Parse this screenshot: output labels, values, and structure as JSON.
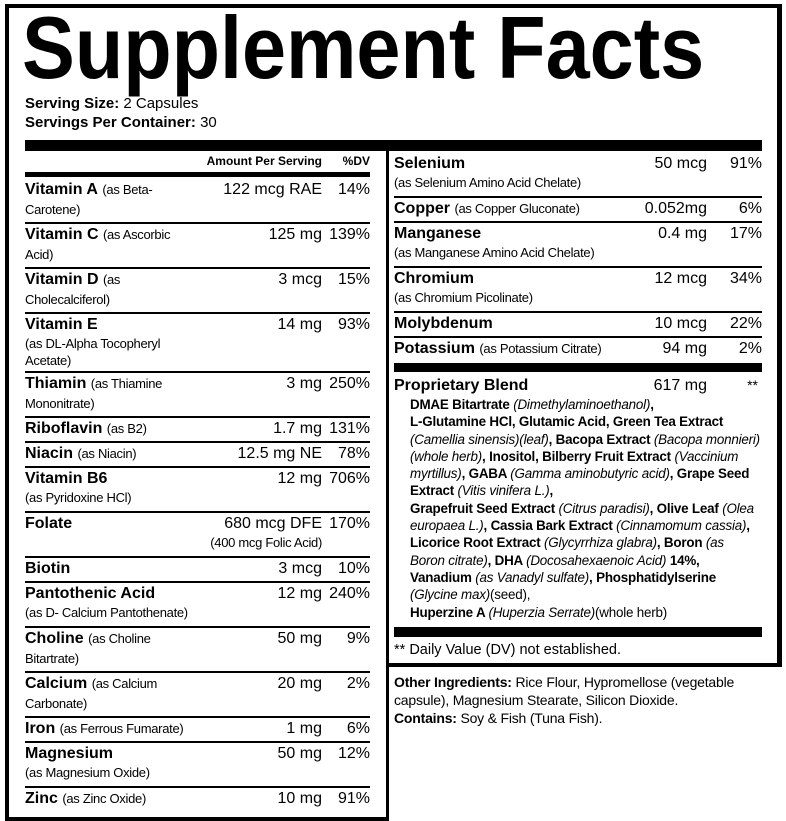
{
  "title": "Supplement Facts",
  "serving": {
    "size_label": "Serving Size:",
    "size_value": "2 Capsules",
    "per_container_label": "Servings Per Container:",
    "per_container_value": "30"
  },
  "header": {
    "amount": "Amount Per Serving",
    "dv": "%DV"
  },
  "left_rows": [
    {
      "name": "Vitamin A",
      "source": "(as Beta-Carotene)",
      "amount": "122 mcg RAE",
      "dv": "14%",
      "double": false
    },
    {
      "name": "Vitamin C",
      "source": "(as Ascorbic Acid)",
      "amount": "125 mg",
      "dv": "139%",
      "double": false
    },
    {
      "name": "Vitamin D",
      "source": "(as Cholecalciferol)",
      "amount": "3 mcg",
      "dv": "15%",
      "double": false
    },
    {
      "name": "Vitamin E",
      "source": "(as DL-Alpha Tocopheryl Acetate)",
      "amount": "14 mg",
      "dv": "93%",
      "double": true
    },
    {
      "name": "Thiamin",
      "source": "(as Thiamine Mononitrate)",
      "amount": "3 mg",
      "dv": "250%",
      "double": false
    },
    {
      "name": "Riboflavin",
      "source": "(as B2)",
      "amount": "1.7 mg",
      "dv": "131%",
      "double": false
    },
    {
      "name": "Niacin",
      "source": "(as Niacin)",
      "amount": "12.5 mg NE",
      "dv": "78%",
      "double": false
    },
    {
      "name": "Vitamin B6",
      "source": "(as Pyridoxine HCl)",
      "amount": "12 mg",
      "dv": "706%",
      "double": true
    },
    {
      "name": "Folate",
      "source": "",
      "amount": "680 mcg DFE",
      "amount_sub": "(400 mcg Folic Acid)",
      "dv": "170%",
      "double": true
    },
    {
      "name": "Biotin",
      "source": "",
      "amount": "3 mcg",
      "dv": "10%",
      "double": false
    },
    {
      "name": "Pantothenic Acid",
      "source": "(as D- Calcium Pantothenate)",
      "amount": "12 mg",
      "dv": "240%",
      "double": true
    },
    {
      "name": "Choline",
      "source": "(as Choline Bitartrate)",
      "amount": "50 mg",
      "dv": "9%",
      "double": false
    },
    {
      "name": "Calcium",
      "source": "(as Calcium Carbonate)",
      "amount": "20 mg",
      "dv": "2%",
      "double": false
    },
    {
      "name": "Iron",
      "source": "(as Ferrous Fumarate)",
      "amount": "1 mg",
      "dv": "6%",
      "double": false
    },
    {
      "name": "Magnesium",
      "source": "(as Magnesium Oxide)",
      "amount": "50 mg",
      "dv": "12%",
      "double": true
    },
    {
      "name": "Zinc",
      "source": "(as Zinc Oxide)",
      "amount": "10 mg",
      "dv": "91%",
      "double": false
    }
  ],
  "right_rows": [
    {
      "name": "Selenium",
      "source": "(as Selenium Amino Acid Chelate)",
      "amount": "50 mcg",
      "dv": "91%",
      "double": true
    },
    {
      "name": "Copper",
      "source": "(as Copper Gluconate)",
      "amount": "0.052mg",
      "dv": "6%",
      "double": false
    },
    {
      "name": "Manganese",
      "source": "(as Manganese Amino Acid Chelate)",
      "amount": "0.4 mg",
      "dv": "17%",
      "double": true
    },
    {
      "name": "Chromium",
      "source": "(as Chromium Picolinate)",
      "amount": "12 mcg",
      "dv": "34%",
      "double": true
    },
    {
      "name": "Molybdenum",
      "source": "",
      "amount": "10 mcg",
      "dv": "22%",
      "double": false
    },
    {
      "name": "Potassium",
      "source": "(as Potassium Citrate)",
      "amount": "94 mg",
      "dv": "2%",
      "double": false
    }
  ],
  "blend": {
    "name": "Proprietary Blend",
    "amount": "617 mg",
    "dv": "**",
    "segments": [
      {
        "t": "DMAE Bitartrate ",
        "s": "b"
      },
      {
        "t": "(Dimethylaminoethanol)",
        "s": "i"
      },
      {
        "t": ",",
        "s": "b"
      },
      {
        "t": "\n",
        "s": "br"
      },
      {
        "t": "L-Glutamine HCl, Glutamic Acid, Green Tea Extract ",
        "s": "b"
      },
      {
        "t": "(Camellia sinensis)(leaf)",
        "s": "i"
      },
      {
        "t": ", Bacopa Extract ",
        "s": "b"
      },
      {
        "t": "(Bacopa monnieri)(whole herb)",
        "s": "i"
      },
      {
        "t": ", Inositol, Bilberry Fruit Extract ",
        "s": "b"
      },
      {
        "t": "(Vaccinium myrtillus)",
        "s": "i"
      },
      {
        "t": ", GABA ",
        "s": "b"
      },
      {
        "t": "(Gamma aminobutyric acid)",
        "s": "i"
      },
      {
        "t": ", Grape Seed Extract ",
        "s": "b"
      },
      {
        "t": "(Vitis vinifera L.)",
        "s": "i"
      },
      {
        "t": ",",
        "s": "b"
      },
      {
        "t": "\n",
        "s": "br"
      },
      {
        "t": "Grapefruit Seed Extract ",
        "s": "b"
      },
      {
        "t": "(Citrus paradisi)",
        "s": "i"
      },
      {
        "t": ", Olive Leaf ",
        "s": "b"
      },
      {
        "t": "(Olea europaea L.)",
        "s": "i"
      },
      {
        "t": ", Cassia Bark Extract ",
        "s": "b"
      },
      {
        "t": "(Cinnamomum cassia)",
        "s": "i"
      },
      {
        "t": ", Licorice Root Extract ",
        "s": "b"
      },
      {
        "t": "(Glycyrrhiza glabra)",
        "s": "i"
      },
      {
        "t": ", Boron ",
        "s": "b"
      },
      {
        "t": "(as Boron citrate)",
        "s": "i"
      },
      {
        "t": ", DHA ",
        "s": "b"
      },
      {
        "t": "(Docosahexaenoic Acid) ",
        "s": "i"
      },
      {
        "t": "14%, Vanadium ",
        "s": "b"
      },
      {
        "t": "(as Vanadyl sulfate)",
        "s": "i"
      },
      {
        "t": ", Phosphatidylserine ",
        "s": "b"
      },
      {
        "t": "(Glycine max)",
        "s": "i"
      },
      {
        "t": "(seed),",
        "s": "n"
      },
      {
        "t": "\n",
        "s": "br"
      },
      {
        "t": "Huperzine A ",
        "s": "b"
      },
      {
        "t": "(Huperzia Serrate)",
        "s": "i"
      },
      {
        "t": "(whole herb)",
        "s": "n"
      }
    ]
  },
  "footnote": "** Daily Value (DV) not established.",
  "other": {
    "label": "Other Ingredients:",
    "value": " Rice Flour, Hypromellose (vegetable capsule), Magnesium Stearate, Silicon Dioxide.",
    "contains_label": "Contains:",
    "contains_value": " Soy & Fish (Tuna Fish)."
  }
}
